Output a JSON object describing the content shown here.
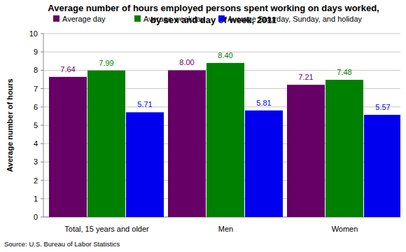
{
  "chart_data": {
    "type": "bar",
    "title": "Average number of hours employed persons spent working on days worked,\nby sex and day of week, 2011",
    "y_label": "Average number of hours",
    "source": "Source: U.S. Bureau of Labor Statistics",
    "categories": [
      "Total, 15 years and older",
      "Men",
      "Women"
    ],
    "series": [
      {
        "name": "Average day",
        "color": "#660066",
        "values": [
          7.64,
          8.0,
          7.21
        ],
        "value_labels": [
          "7.64",
          "8.00",
          "7.21"
        ]
      },
      {
        "name": "Average weekday",
        "color": "#008000",
        "values": [
          7.99,
          8.4,
          7.48
        ],
        "value_labels": [
          "7.99",
          "8.40",
          "7.48"
        ]
      },
      {
        "name": "Average Saturday, Sunday, and holiday",
        "color": "#0000ee",
        "values": [
          5.71,
          5.81,
          5.57
        ],
        "value_labels": [
          "5.71",
          "5.81",
          "5.57"
        ]
      }
    ],
    "ylim": [
      0,
      10
    ],
    "yticks": [
      0,
      1,
      2,
      3,
      4,
      5,
      6,
      7,
      8,
      9,
      10
    ],
    "grid": true,
    "legend": "top",
    "data_labels": true
  }
}
